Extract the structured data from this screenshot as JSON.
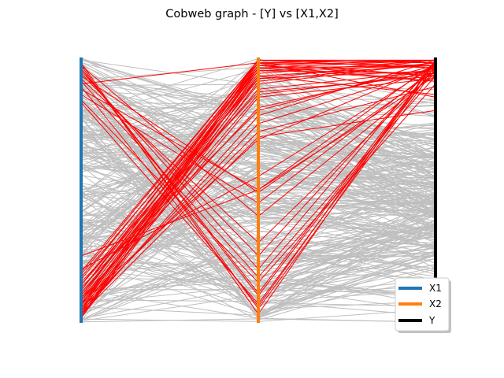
{
  "chart_data": {
    "type": "parallel-coordinates",
    "title": "Cobweb graph - [Y] vs [X1,X2]",
    "axes": [
      "X1",
      "X2",
      "Y"
    ],
    "axis_colors": {
      "X1": "#1f77b4",
      "X2": "#ff7f0e",
      "Y": "#000000"
    },
    "highlight_color": "#ff0000",
    "background_line_color": "#bfbfbf",
    "legend": {
      "placement": "lower-right",
      "entries": [
        {
          "label": "X1",
          "color": "#1f77b4"
        },
        {
          "label": "X2",
          "color": "#ff7f0e"
        },
        {
          "label": "Y",
          "color": "#000000"
        }
      ]
    },
    "highlighted_samples": [
      [
        0.98,
        0.03,
        0.99
      ],
      [
        0.97,
        0.05,
        0.96
      ],
      [
        0.96,
        0.1,
        0.97
      ],
      [
        0.95,
        0.2,
        0.99
      ],
      [
        0.93,
        0.49,
        0.95
      ],
      [
        0.9,
        0.98,
        0.85
      ],
      [
        0.88,
        0.5,
        0.98
      ],
      [
        0.84,
        0.15,
        0.9
      ],
      [
        0.83,
        0.07,
        0.97
      ],
      [
        0.91,
        0.17,
        0.93
      ],
      [
        0.94,
        0.25,
        0.98
      ],
      [
        0.86,
        0.45,
        0.96
      ],
      [
        0.19,
        0.99,
        0.96
      ],
      [
        0.16,
        0.98,
        0.93
      ],
      [
        0.14,
        0.97,
        0.99
      ],
      [
        0.12,
        0.95,
        0.94
      ],
      [
        0.1,
        0.93,
        0.97
      ],
      [
        0.09,
        0.99,
        0.98
      ],
      [
        0.08,
        0.96,
        0.91
      ],
      [
        0.07,
        0.94,
        0.99
      ],
      [
        0.06,
        0.92,
        0.95
      ],
      [
        0.05,
        0.98,
        0.97
      ],
      [
        0.04,
        0.97,
        0.93
      ],
      [
        0.03,
        0.96,
        0.99
      ],
      [
        0.02,
        0.99,
        0.96
      ],
      [
        0.015,
        0.91,
        0.98
      ],
      [
        0.11,
        0.88,
        0.95
      ],
      [
        0.13,
        0.8,
        0.97
      ],
      [
        0.03,
        0.78,
        0.99
      ],
      [
        0.05,
        0.85,
        0.92
      ],
      [
        0.07,
        0.9,
        0.98
      ],
      [
        0.09,
        0.81,
        0.96
      ],
      [
        0.18,
        0.99,
        0.99
      ],
      [
        0.17,
        0.96,
        0.97
      ],
      [
        0.15,
        0.87,
        0.93
      ],
      [
        0.04,
        0.75,
        0.96
      ],
      [
        0.06,
        0.98,
        0.99
      ],
      [
        0.08,
        0.86,
        0.94
      ],
      [
        0.02,
        0.95,
        0.97
      ],
      [
        0.12,
        0.99,
        0.98
      ],
      [
        0.1,
        0.97,
        0.91
      ],
      [
        0.14,
        0.92,
        0.99
      ],
      [
        0.2,
        0.55,
        0.97
      ],
      [
        0.25,
        0.5,
        0.93
      ],
      [
        0.02,
        0.93,
        0.86
      ],
      [
        0.03,
        0.7,
        0.8
      ],
      [
        0.05,
        0.72,
        0.89
      ],
      [
        0.07,
        0.69,
        0.97
      ],
      [
        0.96,
        0.11,
        0.98
      ],
      [
        0.92,
        0.3,
        0.95
      ],
      [
        0.89,
        0.06,
        0.99
      ],
      [
        0.97,
        0.4,
        0.94
      ]
    ]
  }
}
